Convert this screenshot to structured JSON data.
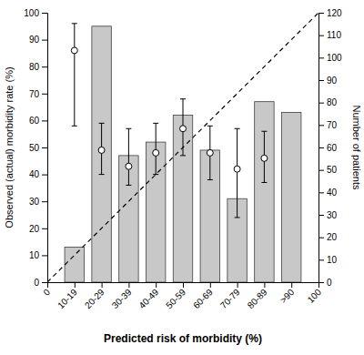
{
  "chart_data": {
    "type": "bar",
    "xlabel": "Predicted risk of morbidity (%)",
    "ylabel": "Observed (actual) morbidity rate (%)",
    "y2label": "Number of patients",
    "categories": [
      "0",
      "10-19",
      "20-29",
      "30-39",
      "40-49",
      "50-59",
      "60-69",
      "70-79",
      "80-89",
      ">90",
      "100"
    ],
    "ylim": [
      0,
      100
    ],
    "yticks": [
      0,
      10,
      20,
      30,
      40,
      50,
      60,
      70,
      80,
      90,
      100
    ],
    "y2lim": [
      0,
      120
    ],
    "y2ticks": [
      0,
      10,
      20,
      30,
      40,
      50,
      60,
      70,
      80,
      90,
      100,
      110,
      120
    ],
    "series": [
      {
        "type": "bar",
        "color": "#c8c8c8",
        "values": [
          null,
          13,
          95,
          47,
          52,
          62,
          49,
          31,
          67,
          63,
          null
        ]
      },
      {
        "type": "scatter",
        "marker": "circle",
        "values": [
          null,
          86,
          49,
          43,
          48,
          57,
          48,
          42,
          46,
          null,
          null
        ],
        "ci_lower": [
          null,
          58,
          40,
          36,
          40,
          47,
          38,
          24,
          37,
          null,
          null
        ],
        "ci_upper": [
          null,
          96,
          59,
          57,
          59,
          68,
          58,
          57,
          56,
          null,
          null
        ]
      },
      {
        "type": "line",
        "axis": "y2",
        "line_style": "dashed",
        "values": [
          0,
          null,
          null,
          null,
          null,
          null,
          null,
          null,
          null,
          null,
          120
        ]
      }
    ]
  }
}
